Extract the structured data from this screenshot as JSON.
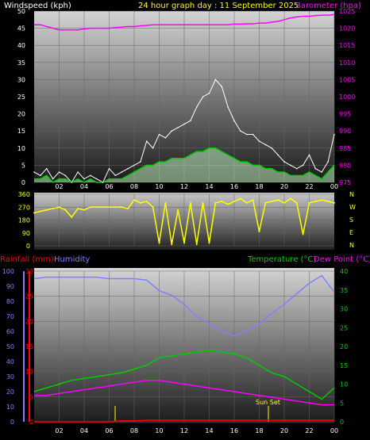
{
  "header": {
    "wind_label": "Windspeed (kph)",
    "title": "24 hour graph day : 11 September 2025",
    "baro_label": "Barometer (hpa)"
  },
  "mid_header": {
    "rain_label": "Rainfall (mm)",
    "humidity_label": "Humidity",
    "temp_label": "Temperature (°C)",
    "dew_label": "Dew Point (°C)"
  },
  "annotation": {
    "sunset": "Sun Set"
  },
  "colors": {
    "wind_gust": "#ffffff",
    "wind_avg": "#00cc00",
    "wind_fill": "#ccffcc",
    "barometer": "#ff00ff",
    "direction": "#ffff00",
    "rain": "#ff0000",
    "humidity": "#8080ff",
    "temperature": "#00cc00",
    "dewpoint": "#ff00ff"
  },
  "chart_data": [
    {
      "type": "line",
      "name_of_panel": "wind-barometer",
      "x_ticks": [
        "02",
        "04",
        "06",
        "08",
        "10",
        "12",
        "14",
        "16",
        "18",
        "20",
        "22",
        "00"
      ],
      "x_hours": [
        0,
        0.5,
        1,
        1.5,
        2,
        2.5,
        3,
        3.5,
        4,
        4.5,
        5,
        5.5,
        6,
        6.5,
        7,
        7.5,
        8,
        8.5,
        9,
        9.5,
        10,
        10.5,
        11,
        11.5,
        12,
        12.5,
        13,
        13.5,
        14,
        14.5,
        15,
        15.5,
        16,
        16.5,
        17,
        17.5,
        18,
        18.5,
        19,
        19.5,
        20,
        20.5,
        21,
        21.5,
        22,
        22.5,
        23,
        23.5,
        24
      ],
      "y_left": {
        "label": "Windspeed (kph)",
        "range": [
          0,
          50
        ],
        "ticks": [
          0,
          5,
          10,
          15,
          20,
          25,
          30,
          35,
          40,
          45,
          50
        ]
      },
      "y_right": {
        "label": "Barometer (hpa)",
        "range": [
          975,
          1025
        ],
        "ticks": [
          975,
          980,
          985,
          990,
          995,
          1000,
          1005,
          1010,
          1015,
          1020,
          1025
        ]
      },
      "series": [
        {
          "values": [
            3,
            2,
            4,
            1,
            3,
            2,
            0,
            3,
            1,
            2,
            1,
            0,
            4,
            2,
            3,
            4,
            5,
            6,
            12,
            10,
            14,
            13,
            15,
            16,
            17,
            18,
            22,
            25,
            26,
            30,
            28,
            22,
            18,
            15,
            14,
            14,
            12,
            11,
            10,
            8,
            6,
            5,
            4,
            5,
            8,
            4,
            3,
            6,
            14
          ]
        },
        {
          "values": [
            1,
            1,
            2,
            0,
            1,
            1,
            0,
            1,
            0,
            1,
            0,
            0,
            1,
            1,
            1,
            2,
            3,
            4,
            5,
            5,
            6,
            6,
            7,
            7,
            7,
            8,
            9,
            9,
            10,
            10,
            9,
            8,
            7,
            6,
            6,
            5,
            5,
            4,
            4,
            3,
            3,
            2,
            2,
            2,
            3,
            2,
            1,
            3,
            5
          ]
        },
        {
          "values": [
            1021,
            1021,
            1020.5,
            1020,
            1019.5,
            1019.5,
            1019.5,
            1019.5,
            1019.8,
            1020,
            1020,
            1020,
            1020,
            1020.2,
            1020.3,
            1020.5,
            1020.5,
            1020.7,
            1020.8,
            1021,
            1021,
            1021,
            1021,
            1021,
            1021,
            1021,
            1021,
            1021,
            1021,
            1021,
            1021,
            1021,
            1021.2,
            1021.2,
            1021.3,
            1021.3,
            1021.5,
            1021.5,
            1021.8,
            1022,
            1022.5,
            1023,
            1023.3,
            1023.5,
            1023.5,
            1023.7,
            1023.8,
            1023.8,
            1024
          ]
        }
      ]
    },
    {
      "type": "line",
      "name_of_panel": "wind-direction",
      "y_ticks": [
        0,
        90,
        180,
        270,
        360
      ],
      "y_range": [
        0,
        360
      ],
      "compass_labels": [
        "N",
        "W",
        "S",
        "E",
        "N"
      ],
      "x_hours": [
        0,
        0.5,
        1,
        1.5,
        2,
        2.5,
        3,
        3.5,
        4,
        4.5,
        5,
        5.5,
        6,
        6.5,
        7,
        7.5,
        8,
        8.5,
        9,
        9.5,
        10,
        10.5,
        11,
        11.5,
        12,
        12.5,
        13,
        13.5,
        14,
        14.5,
        15,
        15.5,
        16,
        16.5,
        17,
        17.5,
        18,
        18.5,
        19,
        19.5,
        20,
        20.5,
        21,
        21.5,
        22,
        22.5,
        23,
        23.5,
        24
      ],
      "series": [
        {
          "values": [
            230,
            240,
            250,
            260,
            270,
            250,
            200,
            260,
            250,
            270,
            270,
            270,
            270,
            270,
            270,
            260,
            320,
            300,
            310,
            270,
            20,
            300,
            10,
            250,
            20,
            300,
            10,
            300,
            20,
            300,
            310,
            290,
            310,
            330,
            300,
            320,
            100,
            300,
            310,
            320,
            300,
            330,
            300,
            80,
            300,
            310,
            320,
            310,
            300
          ]
        }
      ]
    },
    {
      "type": "line",
      "name_of_panel": "temperature-humidity",
      "x_ticks": [
        "02",
        "04",
        "06",
        "08",
        "10",
        "12",
        "14",
        "16",
        "18",
        "20",
        "22",
        "00"
      ],
      "x_hours": [
        0,
        1,
        2,
        3,
        4,
        5,
        6,
        7,
        8,
        9,
        10,
        11,
        12,
        13,
        14,
        15,
        16,
        17,
        18,
        19,
        20,
        21,
        22,
        23,
        24
      ],
      "y_left_rain": {
        "label": "Rainfall (mm)",
        "range": [
          0,
          30
        ],
        "ticks": [
          0,
          5,
          10,
          15,
          20,
          25,
          30
        ]
      },
      "y_left_humidity": {
        "label": "Humidity",
        "range": [
          0,
          100
        ],
        "ticks": [
          0,
          10,
          20,
          30,
          40,
          50,
          60,
          70,
          80,
          90,
          100
        ]
      },
      "y_right": {
        "label": "Temperature (°C)",
        "range": [
          0,
          40
        ],
        "ticks": [
          0,
          5,
          10,
          15,
          20,
          25,
          30,
          35,
          40
        ]
      },
      "series": [
        {
          "values": [
            8,
            9,
            10,
            11,
            11.5,
            12,
            12.5,
            13,
            14,
            15,
            17,
            17.5,
            18,
            18.5,
            19,
            18.5,
            18,
            17,
            15,
            13,
            12,
            10,
            8,
            6,
            9
          ]
        },
        {
          "values": [
            7,
            7,
            7.5,
            8,
            8.5,
            9,
            9.5,
            10,
            10.5,
            11,
            11,
            10.5,
            10,
            9.5,
            9,
            8.5,
            8,
            7.5,
            7,
            6.5,
            6,
            5.5,
            5,
            4.5,
            4.5
          ]
        },
        {
          "values": [
            95,
            96,
            96,
            96,
            96,
            96,
            95,
            95,
            95,
            94,
            87,
            84,
            78,
            70,
            65,
            60,
            57,
            60,
            65,
            72,
            78,
            85,
            92,
            97,
            86
          ]
        },
        {
          "values": [
            0,
            0,
            0,
            0,
            0,
            0,
            0,
            0.2,
            0.2,
            0.3,
            0.3,
            0.3,
            0.3,
            0.3,
            0.3,
            0.3,
            0.3,
            0.3,
            0.3,
            0.3,
            0.3,
            0.3,
            0.3,
            0.3,
            0.3
          ]
        }
      ]
    }
  ]
}
